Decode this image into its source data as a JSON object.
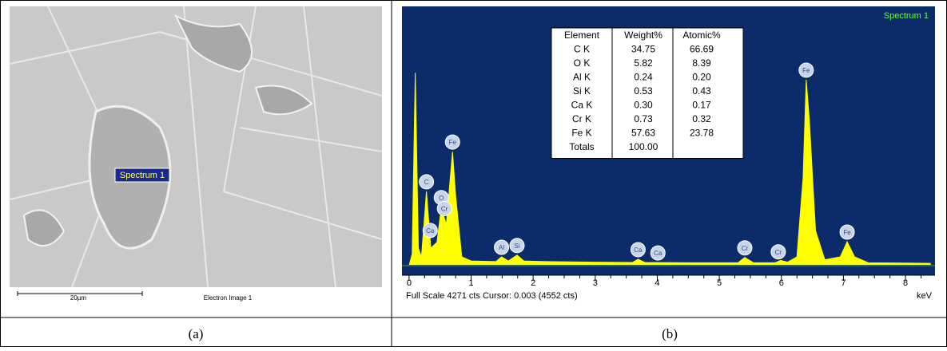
{
  "panels": {
    "left_caption": "(a)",
    "right_caption": "(b)",
    "sem": {
      "spot_label": "Spectrum 1",
      "scale_bar": "20µm",
      "image_label": "Electron Image 1"
    }
  },
  "eds_table": {
    "header": [
      "Element",
      "Weight%",
      "Atomic%"
    ],
    "rows": [
      [
        "C K",
        "34.75",
        "66.69"
      ],
      [
        "O K",
        "5.82",
        "8.39"
      ],
      [
        "Al K",
        "0.24",
        "0.20"
      ],
      [
        "Si K",
        "0.53",
        "0.43"
      ],
      [
        "Ca K",
        "0.30",
        "0.17"
      ],
      [
        "Cr K",
        "0.73",
        "0.32"
      ],
      [
        "Fe K",
        "57.63",
        "23.78"
      ],
      [
        "Totals",
        "100.00"
      ]
    ]
  },
  "chart_data": {
    "type": "area",
    "footer": "Full Scale 4271 cts Cursor: 0.003  (4552 cts)",
    "x_label": "keV",
    "x": [
      0,
      0.05,
      0.1,
      0.15,
      0.2,
      0.28,
      0.35,
      0.45,
      0.52,
      0.6,
      0.7,
      0.75,
      0.85,
      1.0,
      1.4,
      1.49,
      1.6,
      1.74,
      1.85,
      2.2,
      3.0,
      3.6,
      3.69,
      3.8,
      4.5,
      5.3,
      5.41,
      5.55,
      5.9,
      5.99,
      6.1,
      6.25,
      6.35,
      6.4,
      6.45,
      6.55,
      6.7,
      6.95,
      7.06,
      7.18,
      7.4,
      8.0,
      8.4
    ],
    "series": [
      {
        "name": "Spectrum 1",
        "color": "#ffff00",
        "values": [
          0,
          200,
          3300,
          300,
          150,
          1270,
          300,
          400,
          1000,
          700,
          1950,
          1200,
          150,
          80,
          70,
          150,
          80,
          180,
          80,
          70,
          60,
          55,
          110,
          55,
          50,
          50,
          140,
          50,
          50,
          90,
          60,
          150,
          1500,
          3180,
          2500,
          600,
          100,
          150,
          410,
          150,
          50,
          45,
          40
        ]
      }
    ],
    "peak_markers": [
      {
        "label": "C",
        "x": 0.28
      },
      {
        "label": "Ca",
        "x": 0.34
      },
      {
        "label": "O",
        "x": 0.52
      },
      {
        "label": "Cr",
        "x": 0.57
      },
      {
        "label": "Fe",
        "x": 0.7
      },
      {
        "label": "Al",
        "x": 1.49
      },
      {
        "label": "Si",
        "x": 1.74
      },
      {
        "label": "Ca",
        "x": 3.69
      },
      {
        "label": "Ca",
        "x": 4.01
      },
      {
        "label": "Cr",
        "x": 5.41
      },
      {
        "label": "Cr",
        "x": 5.95
      },
      {
        "label": "Fe",
        "x": 6.4
      },
      {
        "label": "Fe",
        "x": 7.06
      }
    ],
    "xlim": [
      -0.05,
      8.45
    ],
    "xticks": [
      0,
      1,
      2,
      3,
      4,
      5,
      6,
      7,
      8
    ],
    "ylim": [
      0,
      4271
    ]
  }
}
